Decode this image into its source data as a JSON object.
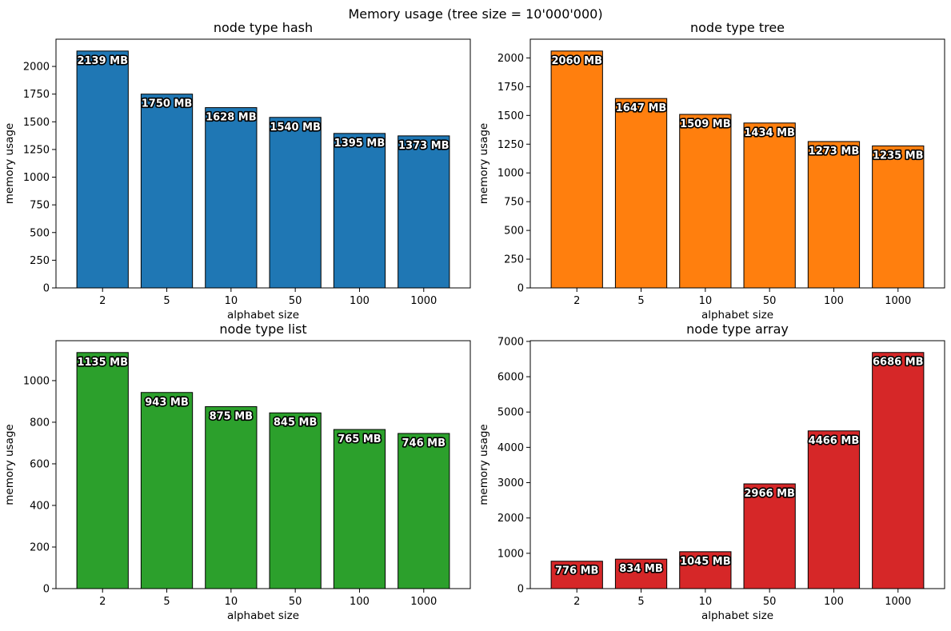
{
  "figure_title": "Memory usage (tree size = 10'000'000)",
  "chart_data": [
    {
      "type": "bar",
      "title": "node type hash",
      "xlabel": "alphabet size",
      "ylabel": "memory usage",
      "categories": [
        "2",
        "5",
        "10",
        "50",
        "100",
        "1000"
      ],
      "values": [
        2139,
        1750,
        1628,
        1540,
        1395,
        1373
      ],
      "data_labels": [
        "2139 MB",
        "1750 MB",
        "1628 MB",
        "1540 MB",
        "1395 MB",
        "1373 MB"
      ],
      "ylim": [
        0,
        2246
      ],
      "yticks": [
        0,
        250,
        500,
        750,
        1000,
        1250,
        1500,
        1750,
        2000
      ],
      "color": "#1f77b4",
      "grid": false
    },
    {
      "type": "bar",
      "title": "node type tree",
      "xlabel": "alphabet size",
      "ylabel": "memory usage",
      "categories": [
        "2",
        "5",
        "10",
        "50",
        "100",
        "1000"
      ],
      "values": [
        2060,
        1647,
        1509,
        1434,
        1273,
        1235
      ],
      "data_labels": [
        "2060 MB",
        "1647 MB",
        "1509 MB",
        "1434 MB",
        "1273 MB",
        "1235 MB"
      ],
      "ylim": [
        0,
        2163
      ],
      "yticks": [
        0,
        250,
        500,
        750,
        1000,
        1250,
        1500,
        1750,
        2000
      ],
      "color": "#ff7f0e",
      "grid": false
    },
    {
      "type": "bar",
      "title": "node type list",
      "xlabel": "alphabet size",
      "ylabel": "memory usage",
      "categories": [
        "2",
        "5",
        "10",
        "50",
        "100",
        "1000"
      ],
      "values": [
        1135,
        943,
        875,
        845,
        765,
        746
      ],
      "data_labels": [
        "1135 MB",
        "943 MB",
        "875 MB",
        "845 MB",
        "765 MB",
        "746 MB"
      ],
      "ylim": [
        0,
        1192
      ],
      "yticks": [
        0,
        200,
        400,
        600,
        800,
        1000
      ],
      "color": "#2ca02c",
      "grid": false
    },
    {
      "type": "bar",
      "title": "node type array",
      "xlabel": "alphabet size",
      "ylabel": "memory usage",
      "categories": [
        "2",
        "5",
        "10",
        "50",
        "100",
        "1000"
      ],
      "values": [
        776,
        834,
        1045,
        2966,
        4466,
        6686
      ],
      "data_labels": [
        "776 MB",
        "834 MB",
        "1045 MB",
        "2966 MB",
        "4466 MB",
        "6686 MB"
      ],
      "ylim": [
        0,
        7020
      ],
      "yticks": [
        0,
        1000,
        2000,
        3000,
        4000,
        5000,
        6000,
        7000
      ],
      "color": "#d62728",
      "grid": false
    }
  ]
}
